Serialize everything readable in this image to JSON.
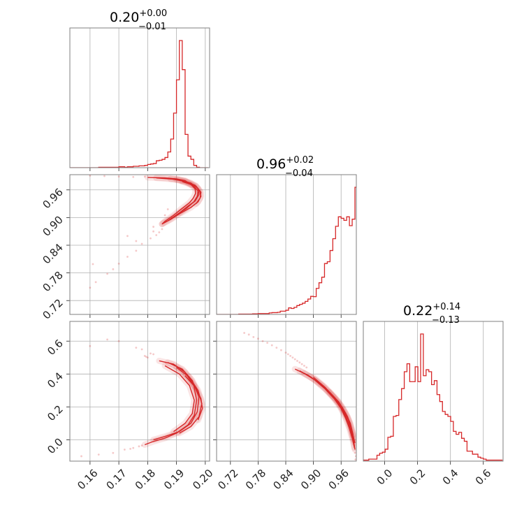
{
  "chart_data": {
    "type": "corner",
    "color": "#d62728",
    "parameters": [
      {
        "title_value": "0.20",
        "title_plus": "+0.00",
        "title_minus": "−0.01",
        "range": [
          0.153,
          0.2015
        ],
        "ticks": [
          0.16,
          0.17,
          0.18,
          0.19,
          0.2
        ],
        "tick_labels": [
          "0.16",
          "0.17",
          "0.18",
          "0.19",
          "0.20"
        ],
        "hist_edges_start": 0.153,
        "hist_bin_width": 0.001,
        "hist_counts": [
          0,
          0,
          0,
          0,
          0,
          0,
          0,
          0,
          0,
          0,
          1,
          1,
          1,
          1,
          1,
          1,
          1,
          2,
          2,
          1,
          2,
          2,
          3,
          3,
          4,
          4,
          5,
          7,
          8,
          9,
          15,
          16,
          18,
          22,
          34,
          62,
          118,
          190,
          275,
          212,
          72,
          25,
          18,
          5,
          1,
          0,
          0,
          0
        ]
      },
      {
        "title_value": "0.96",
        "title_plus": "+0.02",
        "title_minus": "−0.04",
        "range": [
          0.69,
          0.993
        ],
        "ticks": [
          0.72,
          0.78,
          0.84,
          0.9,
          0.96
        ],
        "tick_labels": [
          "0.72",
          "0.78",
          "0.84",
          "0.90",
          "0.96"
        ],
        "hist_edges_start": 0.69,
        "hist_bin_width": 0.006,
        "hist_counts": [
          0,
          0,
          0,
          0,
          0,
          0,
          0,
          0,
          1,
          1,
          1,
          1,
          1,
          2,
          2,
          3,
          3,
          3,
          3,
          5,
          6,
          6,
          7,
          11,
          11,
          14,
          22,
          20,
          24,
          30,
          34,
          38,
          44,
          52,
          61,
          60,
          88,
          107,
          126,
          172,
          178,
          216,
          256,
          298,
          330,
          325,
          318,
          330,
          300,
          322,
          430
        ]
      },
      {
        "title_value": "0.22",
        "title_plus": "+0.14",
        "title_minus": "−0.13",
        "range": [
          -0.13,
          0.72
        ],
        "ticks": [
          0.0,
          0.2,
          0.4,
          0.6
        ],
        "tick_labels": [
          "0.0",
          "0.2",
          "0.4",
          "0.6"
        ],
        "hist_edges_start": -0.13,
        "hist_bin_width": 0.0166,
        "hist_counts": [
          1,
          1,
          2,
          2,
          2,
          6,
          8,
          9,
          12,
          24,
          25,
          45,
          46,
          62,
          73,
          90,
          98,
          80,
          80,
          95,
          80,
          128,
          86,
          92,
          90,
          77,
          81,
          67,
          60,
          50,
          47,
          45,
          40,
          30,
          27,
          29,
          23,
          20,
          10,
          10,
          7,
          7,
          4,
          3,
          2,
          1,
          1,
          1,
          1,
          1,
          1
        ]
      }
    ],
    "pairs": [
      {
        "x_param": 0,
        "y_param": 1,
        "contours": [
          [
            [
              0.18,
              0.987
            ],
            [
              0.186,
              0.986
            ],
            [
              0.19,
              0.984
            ],
            [
              0.193,
              0.98
            ],
            [
              0.195,
              0.972
            ],
            [
              0.1965,
              0.962
            ],
            [
              0.1966,
              0.952
            ],
            [
              0.1958,
              0.942
            ],
            [
              0.1945,
              0.932
            ],
            [
              0.192,
              0.92
            ],
            [
              0.189,
              0.905
            ],
            [
              0.186,
              0.892
            ],
            [
              0.185,
              0.886
            ]
          ],
          [
            [
              0.183,
              0.986
            ],
            [
              0.189,
              0.983
            ],
            [
              0.193,
              0.978
            ],
            [
              0.196,
              0.968
            ],
            [
              0.1975,
              0.958
            ],
            [
              0.1972,
              0.946
            ],
            [
              0.196,
              0.934
            ],
            [
              0.1935,
              0.92
            ],
            [
              0.19,
              0.906
            ],
            [
              0.187,
              0.893
            ],
            [
              0.185,
              0.886
            ]
          ],
          [
            [
              0.19,
              0.983
            ],
            [
              0.195,
              0.975
            ],
            [
              0.1975,
              0.963
            ],
            [
              0.1978,
              0.95
            ],
            [
              0.1965,
              0.936
            ],
            [
              0.194,
              0.925
            ],
            [
              0.191,
              0.91
            ]
          ],
          [
            [
              0.192,
              0.978
            ],
            [
              0.1968,
              0.968
            ],
            [
              0.1985,
              0.955
            ],
            [
              0.1982,
              0.942
            ],
            [
              0.1968,
              0.93
            ]
          ],
          [
            [
              0.188,
              0.984
            ],
            [
              0.193,
              0.979
            ],
            [
              0.1965,
              0.97
            ],
            [
              0.198,
              0.958
            ],
            [
              0.1985,
              0.946
            ],
            [
              0.1975,
              0.934
            ],
            [
              0.195,
              0.922
            ],
            [
              0.191,
              0.908
            ],
            [
              0.188,
              0.896
            ],
            [
              0.1855,
              0.888
            ]
          ]
        ],
        "scatter": [
          [
            0.175,
            0.988
          ],
          [
            0.17,
            0.989
          ],
          [
            0.165,
            0.99
          ],
          [
            0.16,
            0.991
          ],
          [
            0.183,
            0.862
          ],
          [
            0.181,
            0.855
          ],
          [
            0.178,
            0.843
          ],
          [
            0.176,
            0.828
          ],
          [
            0.173,
            0.815
          ],
          [
            0.17,
            0.8
          ],
          [
            0.168,
            0.788
          ],
          [
            0.166,
            0.778
          ],
          [
            0.162,
            0.76
          ],
          [
            0.16,
            0.748
          ],
          [
            0.161,
            0.799
          ],
          [
            0.173,
            0.86
          ],
          [
            0.176,
            0.849
          ],
          [
            0.182,
            0.87
          ],
          [
            0.186,
            0.905
          ],
          [
            0.187,
            0.918
          ],
          [
            0.185,
            0.875
          ],
          [
            0.179,
            0.989
          ],
          [
            0.182,
            0.88
          ],
          [
            0.184,
            0.868
          ]
        ]
      },
      {
        "x_param": 0,
        "y_param": 2,
        "contours": [
          [
            [
              0.184,
              0.48
            ],
            [
              0.189,
              0.46
            ],
            [
              0.193,
              0.41
            ],
            [
              0.196,
              0.33
            ],
            [
              0.197,
              0.24
            ],
            [
              0.1962,
              0.15
            ],
            [
              0.194,
              0.09
            ],
            [
              0.19,
              0.04
            ],
            [
              0.186,
              0.01
            ],
            [
              0.182,
              -0.01
            ],
            [
              0.179,
              -0.03
            ]
          ],
          [
            [
              0.187,
              0.47
            ],
            [
              0.192,
              0.43
            ],
            [
              0.1955,
              0.36
            ],
            [
              0.1978,
              0.26
            ],
            [
              0.1972,
              0.17
            ],
            [
              0.195,
              0.1
            ],
            [
              0.191,
              0.05
            ],
            [
              0.186,
              0.02
            ],
            [
              0.182,
              0.0
            ]
          ],
          [
            [
              0.19,
              0.44
            ],
            [
              0.1945,
              0.38
            ],
            [
              0.1975,
              0.3
            ],
            [
              0.1988,
              0.22
            ],
            [
              0.1978,
              0.14
            ],
            [
              0.195,
              0.08
            ],
            [
              0.191,
              0.04
            ]
          ],
          [
            [
              0.193,
              0.39
            ],
            [
              0.1965,
              0.32
            ],
            [
              0.1985,
              0.25
            ],
            [
              0.199,
              0.19
            ],
            [
              0.1975,
              0.12
            ]
          ],
          [
            [
              0.186,
              0.45
            ],
            [
              0.191,
              0.4
            ],
            [
              0.1945,
              0.33
            ],
            [
              0.1962,
              0.24
            ],
            [
              0.1955,
              0.16
            ],
            [
              0.193,
              0.1
            ],
            [
              0.189,
              0.05
            ]
          ]
        ],
        "scatter": [
          [
            0.16,
            0.57
          ],
          [
            0.166,
            0.61
          ],
          [
            0.17,
            0.6
          ],
          [
            0.176,
            0.56
          ],
          [
            0.178,
            0.55
          ],
          [
            0.179,
            0.51
          ],
          [
            0.18,
            0.5
          ],
          [
            0.182,
            0.52
          ],
          [
            0.157,
            -0.1
          ],
          [
            0.163,
            -0.09
          ],
          [
            0.168,
            -0.08
          ],
          [
            0.172,
            -0.06
          ],
          [
            0.175,
            -0.05
          ],
          [
            0.177,
            -0.04
          ],
          [
            0.178,
            -0.035
          ],
          [
            0.174,
            -0.055
          ],
          [
            0.181,
            0.525
          ],
          [
            0.1795,
            0.505
          ]
        ]
      },
      {
        "x_param": 1,
        "y_param": 2,
        "contours": [
          [
            [
              0.86,
              0.43
            ],
            [
              0.89,
              0.39
            ],
            [
              0.92,
              0.33
            ],
            [
              0.94,
              0.27
            ],
            [
              0.955,
              0.22
            ],
            [
              0.965,
              0.17
            ],
            [
              0.975,
              0.11
            ],
            [
              0.983,
              0.04
            ],
            [
              0.988,
              -0.02
            ],
            [
              0.99,
              -0.06
            ]
          ],
          [
            [
              0.87,
              0.42
            ],
            [
              0.9,
              0.37
            ],
            [
              0.925,
              0.31
            ],
            [
              0.945,
              0.25
            ],
            [
              0.96,
              0.19
            ],
            [
              0.97,
              0.13
            ],
            [
              0.978,
              0.07
            ],
            [
              0.985,
              0.0
            ],
            [
              0.989,
              -0.05
            ]
          ],
          [
            [
              0.88,
              0.405
            ],
            [
              0.905,
              0.36
            ],
            [
              0.93,
              0.3
            ],
            [
              0.95,
              0.24
            ],
            [
              0.965,
              0.18
            ],
            [
              0.976,
              0.12
            ],
            [
              0.984,
              0.05
            ],
            [
              0.99,
              -0.02
            ]
          ],
          [
            [
              0.9,
              0.38
            ],
            [
              0.925,
              0.32
            ],
            [
              0.945,
              0.26
            ],
            [
              0.962,
              0.2
            ],
            [
              0.974,
              0.14
            ],
            [
              0.982,
              0.07
            ],
            [
              0.987,
              0.0
            ]
          ],
          [
            [
              0.935,
              0.29
            ],
            [
              0.955,
              0.23
            ],
            [
              0.97,
              0.16
            ],
            [
              0.98,
              0.1
            ],
            [
              0.986,
              0.03
            ]
          ]
        ],
        "scatter": [
          [
            0.75,
            0.65
          ],
          [
            0.76,
            0.64
          ],
          [
            0.77,
            0.625
          ],
          [
            0.78,
            0.615
          ],
          [
            0.79,
            0.6
          ],
          [
            0.8,
            0.59
          ],
          [
            0.81,
            0.575
          ],
          [
            0.82,
            0.56
          ],
          [
            0.83,
            0.545
          ],
          [
            0.84,
            0.53
          ],
          [
            0.845,
            0.52
          ],
          [
            0.85,
            0.51
          ],
          [
            0.855,
            0.5
          ],
          [
            0.86,
            0.49
          ],
          [
            0.865,
            0.48
          ],
          [
            0.87,
            0.47
          ],
          [
            0.875,
            0.46
          ],
          [
            0.88,
            0.45
          ],
          [
            0.885,
            0.44
          ],
          [
            0.99,
            -0.08
          ],
          [
            0.992,
            -0.1
          ],
          [
            0.991,
            -0.12
          ]
        ]
      }
    ]
  }
}
